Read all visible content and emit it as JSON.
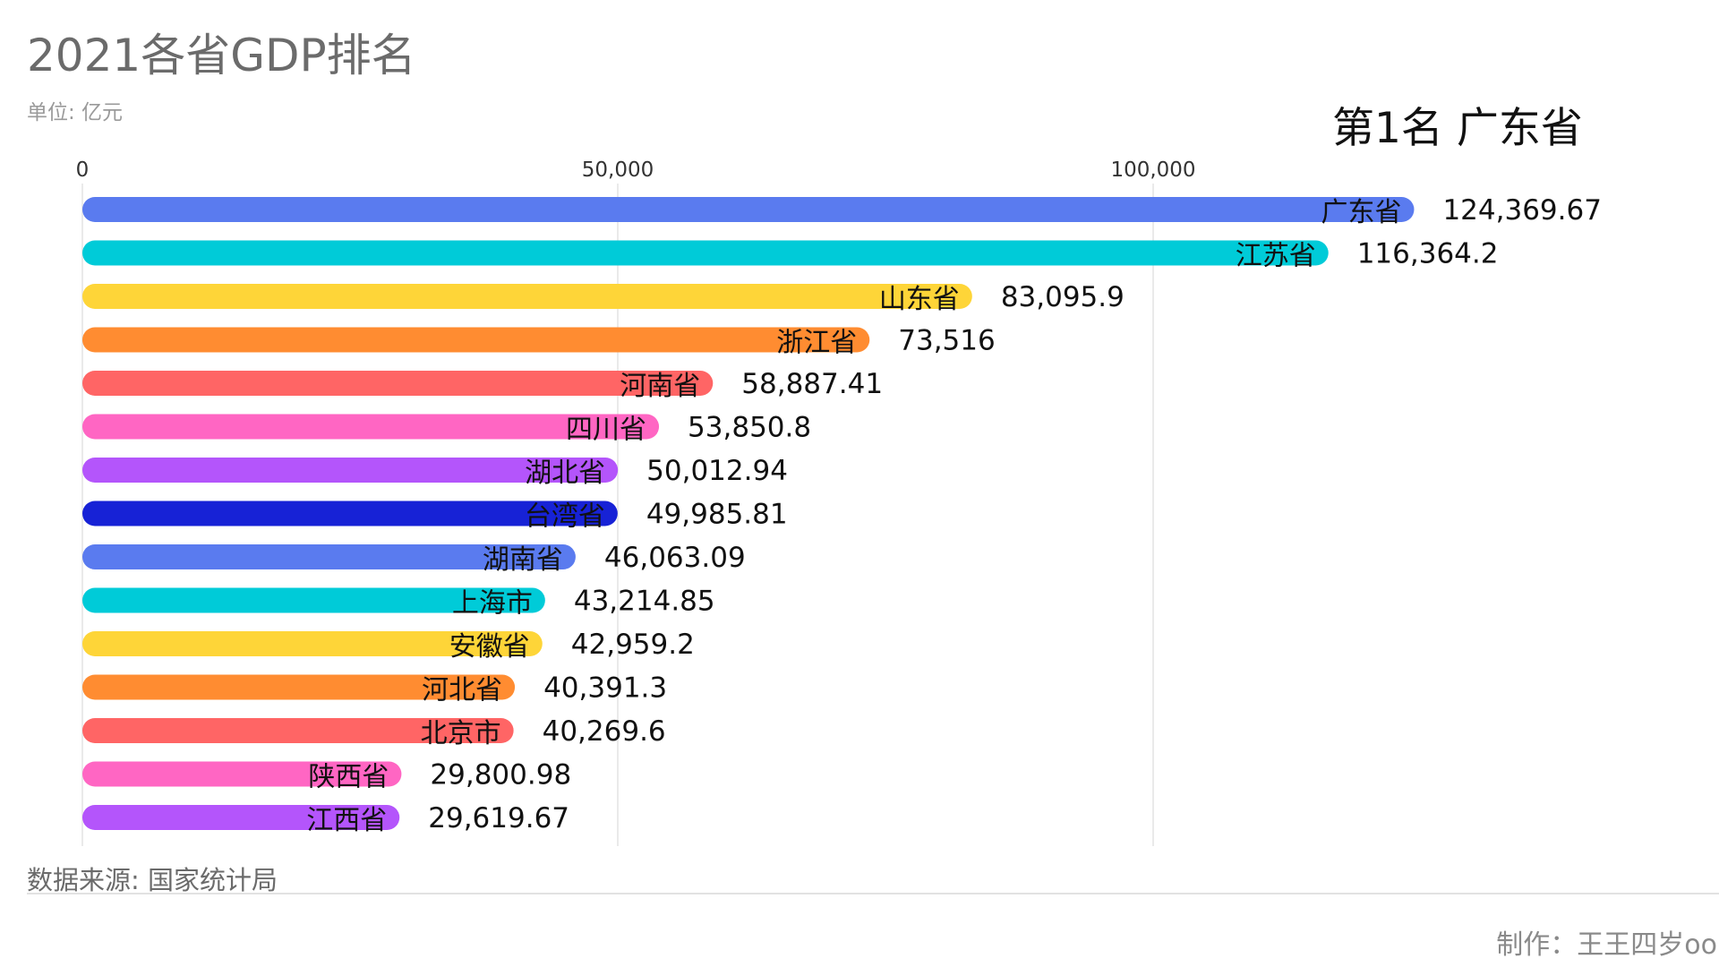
{
  "header": {
    "title": "2021各省GDP排名",
    "unit": "单位: 亿元",
    "rank_label": "第1名 广东省"
  },
  "footer": {
    "source": "数据来源: 国家统计局",
    "credit": "制作：王王四岁oo"
  },
  "chart_data": {
    "type": "bar",
    "orientation": "horizontal",
    "title": "2021各省GDP排名",
    "xlim": [
      0,
      140000
    ],
    "xticks": [
      0,
      50000,
      100000
    ],
    "xtick_labels": [
      "0",
      "50,000",
      "100,000"
    ],
    "grid": true,
    "categories": [
      "广东省",
      "江苏省",
      "山东省",
      "浙江省",
      "河南省",
      "四川省",
      "湖北省",
      "台湾省",
      "湖南省",
      "上海市",
      "安徽省",
      "河北省",
      "北京市",
      "陕西省",
      "江西省"
    ],
    "values": [
      124369.67,
      116364.2,
      83095.9,
      73516,
      58887.41,
      53850.8,
      50012.94,
      49985.81,
      46063.09,
      43214.85,
      42959.2,
      40391.3,
      40269.6,
      29800.98,
      29619.67
    ],
    "value_labels": [
      "124,369.67",
      "116,364.2",
      "83,095.9",
      "73,516",
      "58,887.41",
      "53,850.8",
      "50,012.94",
      "49,985.81",
      "46,063.09",
      "43,214.85",
      "42,959.2",
      "40,391.3",
      "40,269.6",
      "29,800.98",
      "29,619.67"
    ],
    "colors": [
      "#5a7bef",
      "#00cbd8",
      "#fed538",
      "#ff8c31",
      "#ff6565",
      "#ff66c3",
      "#b455fb",
      "#1722d6",
      "#5a7bef",
      "#00cbd8",
      "#fed538",
      "#ff8c31",
      "#ff6565",
      "#ff66c3",
      "#b455fb"
    ]
  }
}
